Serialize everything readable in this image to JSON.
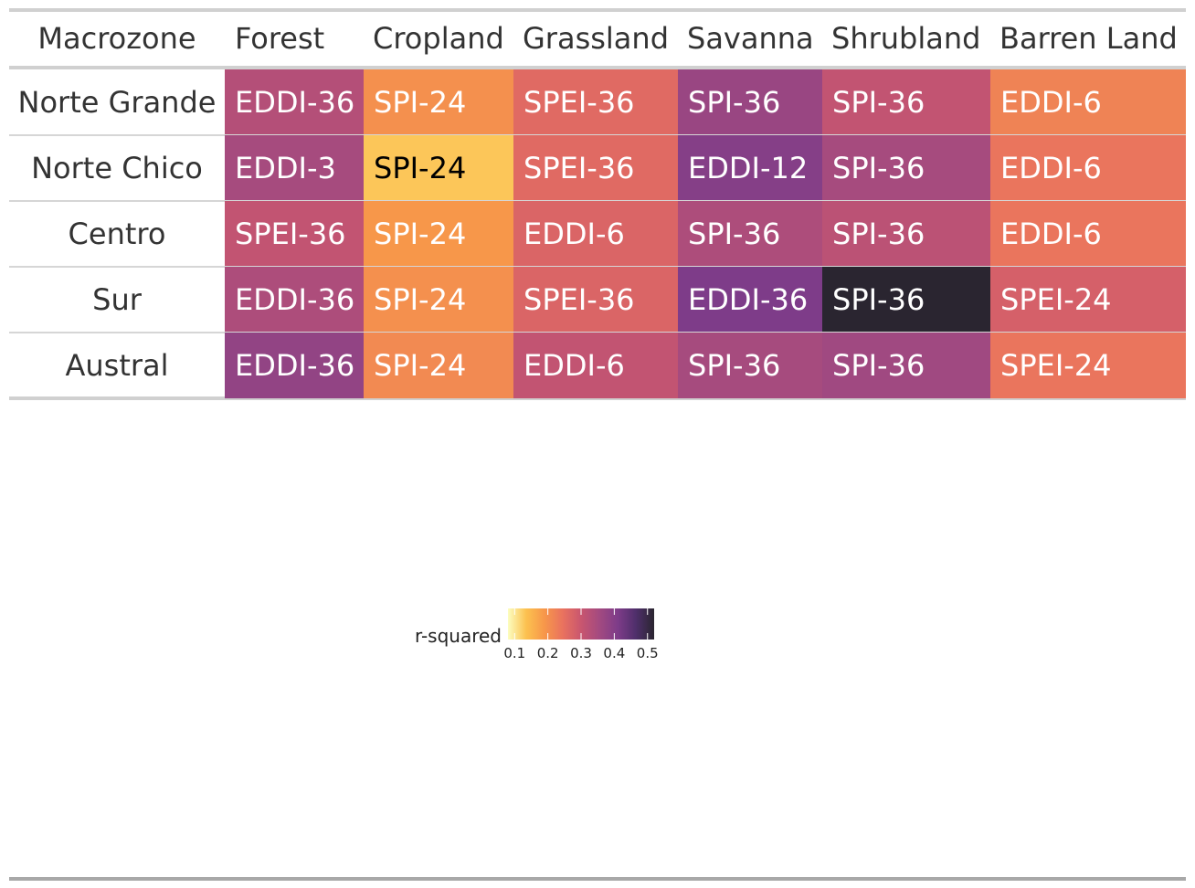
{
  "chart_data": {
    "type": "heatmap",
    "title": "",
    "columns": [
      "Macrozone",
      "Forest",
      "Cropland",
      "Grassland",
      "Savanna",
      "Shrubland",
      "Barren Land"
    ],
    "rows": [
      {
        "name": "Norte Grande",
        "cells": [
          {
            "label": "EDDI-36",
            "value": 0.33
          },
          {
            "label": "SPI-24",
            "value": 0.2
          },
          {
            "label": "SPEI-36",
            "value": 0.26
          },
          {
            "label": "SPI-36",
            "value": 0.37
          },
          {
            "label": "SPI-36",
            "value": 0.31
          },
          {
            "label": "EDDI-6",
            "value": 0.22
          }
        ]
      },
      {
        "name": "Norte Chico",
        "cells": [
          {
            "label": "EDDI-3",
            "value": 0.35
          },
          {
            "label": "SPI-24",
            "value": 0.13
          },
          {
            "label": "SPEI-36",
            "value": 0.26
          },
          {
            "label": "EDDI-12",
            "value": 0.4
          },
          {
            "label": "SPI-36",
            "value": 0.35
          },
          {
            "label": "EDDI-6",
            "value": 0.24
          }
        ]
      },
      {
        "name": "Centro",
        "cells": [
          {
            "label": "SPEI-36",
            "value": 0.31
          },
          {
            "label": "SPI-24",
            "value": 0.19
          },
          {
            "label": "EDDI-6",
            "value": 0.27
          },
          {
            "label": "SPI-36",
            "value": 0.34
          },
          {
            "label": "SPI-36",
            "value": 0.32
          },
          {
            "label": "EDDI-6",
            "value": 0.24
          }
        ]
      },
      {
        "name": "Sur",
        "cells": [
          {
            "label": "EDDI-36",
            "value": 0.34
          },
          {
            "label": "SPI-24",
            "value": 0.2
          },
          {
            "label": "SPEI-36",
            "value": 0.27
          },
          {
            "label": "EDDI-36",
            "value": 0.41
          },
          {
            "label": "SPI-36",
            "value": 0.52
          },
          {
            "label": "SPEI-24",
            "value": 0.28
          }
        ]
      },
      {
        "name": "Austral",
        "cells": [
          {
            "label": "EDDI-36",
            "value": 0.38
          },
          {
            "label": "SPI-24",
            "value": 0.21
          },
          {
            "label": "EDDI-6",
            "value": 0.31
          },
          {
            "label": "SPI-36",
            "value": 0.35
          },
          {
            "label": "SPI-36",
            "value": 0.36
          },
          {
            "label": "SPEI-24",
            "value": 0.24
          }
        ]
      }
    ],
    "legend": {
      "title": "r-squared",
      "ticks": [
        0.1,
        0.2,
        0.3,
        0.4,
        0.5
      ],
      "range": [
        0.08,
        0.52
      ],
      "placement": "bottom-center"
    },
    "colormap": [
      "#fcfdbf",
      "#fcc14f",
      "#f7974a",
      "#e9725f",
      "#c9566f",
      "#a34a80",
      "#7e3c89",
      "#4f2f6b",
      "#2a2530"
    ]
  }
}
